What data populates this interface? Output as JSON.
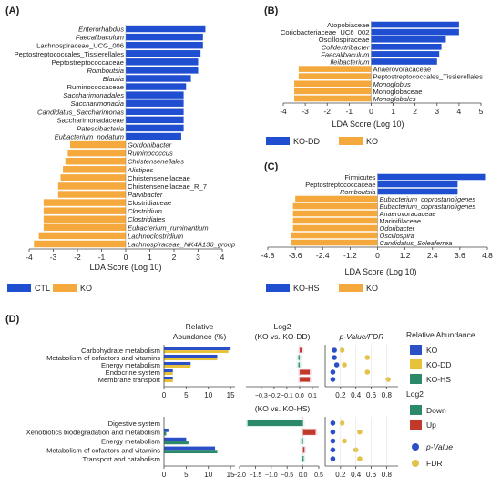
{
  "colors": {
    "ctl": "#1f4fd0",
    "ko": "#f5a93c",
    "ko_dd": "#1f4fd0",
    "ko_hs": "#1f4fd0",
    "relabund_ko": "#2a4fc7",
    "relabund_kodd": "#e7c13a",
    "relabund_kohs": "#2c8a6a",
    "log2_down": "#2c8a6a",
    "log2_up": "#c0392b",
    "pval": "#2a4fc7",
    "fdr": "#e2c24a"
  },
  "chart_data": [
    {
      "panel": "(A)",
      "type": "bar",
      "orientation": "horizontal",
      "xlabel": "LDA Score (Log 10)",
      "xlim": [
        -4,
        4
      ],
      "xticks": [
        "-4",
        "-3",
        "-2",
        "-1",
        "0",
        "1",
        "2",
        "3",
        "4"
      ],
      "legend": [
        {
          "name": "CTL",
          "color": "ctl"
        },
        {
          "name": "KO",
          "color": "ko"
        }
      ],
      "categories": [
        {
          "label": "Enterorhabdus",
          "italic": true,
          "value": 3.3,
          "group": "CTL"
        },
        {
          "label": "Faecalibaculum",
          "italic": true,
          "value": 3.2,
          "group": "CTL"
        },
        {
          "label": "Lachnospiraceae_UCG_006",
          "italic": false,
          "value": 3.2,
          "group": "CTL"
        },
        {
          "label": "Peptostreptococcales_Tissierellales",
          "italic": false,
          "value": 3.1,
          "group": "CTL"
        },
        {
          "label": "Peptostreptococcaceae",
          "italic": false,
          "value": 3.0,
          "group": "CTL"
        },
        {
          "label": "Romboutsia",
          "italic": true,
          "value": 3.0,
          "group": "CTL"
        },
        {
          "label": "Blautia",
          "italic": true,
          "value": 2.7,
          "group": "CTL"
        },
        {
          "label": "Ruminococcaceae",
          "italic": false,
          "value": 2.5,
          "group": "CTL"
        },
        {
          "label": "Saccharimonadales",
          "italic": true,
          "value": 2.4,
          "group": "CTL"
        },
        {
          "label": "Saccharimonadia",
          "italic": true,
          "value": 2.4,
          "group": "CTL"
        },
        {
          "label": "Candidatus_Saccharimonas",
          "italic": true,
          "value": 2.4,
          "group": "CTL"
        },
        {
          "label": "Saccharimonadaceae",
          "italic": false,
          "value": 2.4,
          "group": "CTL"
        },
        {
          "label": "Patescibacteria",
          "italic": true,
          "value": 2.4,
          "group": "CTL"
        },
        {
          "label": "Eubacterium_nodatum",
          "italic": true,
          "value": 2.3,
          "group": "CTL"
        },
        {
          "label": "Gordonibacter",
          "italic": true,
          "value": -2.3,
          "group": "KO"
        },
        {
          "label": "Ruminococcus",
          "italic": true,
          "value": -2.4,
          "group": "KO"
        },
        {
          "label": "Christensenellales",
          "italic": true,
          "value": -2.5,
          "group": "KO"
        },
        {
          "label": "Alistipes",
          "italic": true,
          "value": -2.6,
          "group": "KO"
        },
        {
          "label": "Christensenellaceae",
          "italic": false,
          "value": -2.7,
          "group": "KO"
        },
        {
          "label": "Christensenellaceae_R_7",
          "italic": false,
          "value": -2.8,
          "group": "KO"
        },
        {
          "label": "Parvibacter",
          "italic": true,
          "value": -2.8,
          "group": "KO"
        },
        {
          "label": "Clostridiaceae",
          "italic": false,
          "value": -3.4,
          "group": "KO"
        },
        {
          "label": "Clostridium",
          "italic": true,
          "value": -3.4,
          "group": "KO"
        },
        {
          "label": "Clostridiales",
          "italic": true,
          "value": -3.4,
          "group": "KO"
        },
        {
          "label": "Eubacterium_ruminantium",
          "italic": true,
          "value": -3.4,
          "group": "KO"
        },
        {
          "label": "Lachnoclostridium",
          "italic": true,
          "value": -3.6,
          "group": "KO"
        },
        {
          "label": "Lachnospiraceae_NK4A136_group",
          "italic": true,
          "value": -3.8,
          "group": "KO"
        }
      ]
    },
    {
      "panel": "(B)",
      "type": "bar",
      "orientation": "horizontal",
      "xlabel": "LDA Score (Log 10)",
      "xlim": [
        -4,
        5
      ],
      "xticks": [
        "-4",
        "-3",
        "-2",
        "-1",
        "0",
        "1",
        "2",
        "3",
        "4",
        "5"
      ],
      "legend": [
        {
          "name": "KO-DD",
          "color": "ko_dd"
        },
        {
          "name": "KO",
          "color": "ko"
        }
      ],
      "categories": [
        {
          "label": "Atopobiaceae",
          "italic": false,
          "value": 4.0,
          "group": "KO-DD"
        },
        {
          "label": "Coricbacteriaceae_UC6_002",
          "italic": false,
          "value": 4.0,
          "group": "KO-DD"
        },
        {
          "label": "Oscillospiraceae",
          "italic": false,
          "value": 3.4,
          "group": "KO-DD"
        },
        {
          "label": "Colidextribacter",
          "italic": true,
          "value": 3.2,
          "group": "KO-DD"
        },
        {
          "label": "Faecalibaculum",
          "italic": true,
          "value": 3.1,
          "group": "KO-DD"
        },
        {
          "label": "Ileibacterium",
          "italic": true,
          "value": 3.0,
          "group": "KO-DD"
        },
        {
          "label": "Anaerovoracaceae",
          "italic": false,
          "value": -3.3,
          "group": "KO"
        },
        {
          "label": "Peptostreptococcales_Tissierellales",
          "italic": false,
          "value": -3.3,
          "group": "KO"
        },
        {
          "label": "Monoglobus",
          "italic": true,
          "value": -3.5,
          "group": "KO"
        },
        {
          "label": "Monoglobaceae",
          "italic": false,
          "value": -3.5,
          "group": "KO"
        },
        {
          "label": "Monoglobales",
          "italic": true,
          "value": -3.5,
          "group": "KO"
        }
      ]
    },
    {
      "panel": "(C)",
      "type": "bar",
      "orientation": "horizontal",
      "xlabel": "LDA Score (Log 10)",
      "xlim": [
        -4.8,
        4.8
      ],
      "xticks": [
        "-4.8",
        "-3.6",
        "-2.4",
        "-1.2",
        "0",
        "1.2",
        "2.4",
        "3.6",
        "4.8"
      ],
      "legend": [
        {
          "name": "KO-HS",
          "color": "ko_hs"
        },
        {
          "name": "KO",
          "color": "ko"
        }
      ],
      "categories": [
        {
          "label": "Firmicutes",
          "italic": false,
          "value": 4.7,
          "group": "KO-HS"
        },
        {
          "label": "Peptostreptococcaceae",
          "italic": false,
          "value": 3.5,
          "group": "KO-HS"
        },
        {
          "label": "Romboutsia",
          "italic": true,
          "value": 3.5,
          "group": "KO-HS"
        },
        {
          "label": "Eubacterium_coprostanoligenes",
          "italic": true,
          "value": -3.6,
          "group": "KO"
        },
        {
          "label": "Eubacterium_coprastanoligenes",
          "italic": true,
          "value": -3.7,
          "group": "KO"
        },
        {
          "label": "Anaerovoracaceae",
          "italic": false,
          "value": -3.7,
          "group": "KO"
        },
        {
          "label": "Marinifilaceae",
          "italic": false,
          "value": -3.7,
          "group": "KO"
        },
        {
          "label": "Odoribacter",
          "italic": true,
          "value": -3.7,
          "group": "KO"
        },
        {
          "label": "Oscillospira",
          "italic": true,
          "value": -3.8,
          "group": "KO"
        },
        {
          "label": "Candidatus_Soleaferrea",
          "italic": true,
          "value": -3.8,
          "group": "KO"
        }
      ]
    },
    {
      "panel": "(D)",
      "type": "bar",
      "subplots": [
        {
          "categories": [
            "Carbohydrate metabolism",
            "Metabolism of cofactors and vitamins",
            "Energy metabolism",
            "Endocrine system",
            "Membrane transport"
          ],
          "relative_abundance": {
            "KO": [
              15.0,
              12.0,
              6.0,
              2.0,
              2.0
            ],
            "KO-DD": [
              14.5,
              12.0,
              6.0,
              2.0,
              2.0
            ]
          },
          "log2": [
            0.02,
            -0.01,
            -0.01,
            0.08,
            0.08
          ],
          "pvalue": [
            0.12,
            0.12,
            0.15,
            0.1,
            0.1
          ],
          "fdr": [
            0.22,
            0.55,
            0.25,
            0.55,
            0.82
          ],
          "log2_title": "Log2\n(KO vs. KO-DD)",
          "log2_xlim": [
            -0.42,
            0.15
          ],
          "log2_ticks": [
            "−0.3",
            "−0.2",
            "−0.1",
            "0.0",
            "0.1"
          ]
        },
        {
          "categories": [
            "Digestive system",
            "Xenobiotics biodegradation and metabolism",
            "Energy metabolism",
            "Metabolism of cofactors and vitamins",
            "Transport and catabolism"
          ],
          "relative_abundance": {
            "KO": [
              0.0,
              1.0,
              5.0,
              11.5,
              0.0
            ],
            "KO-HS": [
              0.0,
              0.5,
              5.5,
              12.0,
              0.0
            ]
          },
          "log2": [
            -1.75,
            0.4,
            -0.05,
            0.05,
            -0.02
          ],
          "pvalue": [
            0.1,
            0.1,
            0.1,
            0.1,
            0.1
          ],
          "fdr": [
            0.22,
            0.45,
            0.25,
            0.4,
            0.45
          ],
          "log2_title": "(KO vs. KO-HS)",
          "log2_xlim": [
            -2.0,
            0.5
          ],
          "log2_ticks": [
            "−2.0",
            "−1.5",
            "−1.0",
            "−0.5",
            "0.0",
            "0.5"
          ]
        }
      ],
      "relabund_title": "Relative\nAbundance (%)",
      "relabund_ticks": [
        "0",
        "5",
        "10",
        "15"
      ],
      "pval_title": "p-Value/FDR",
      "pval_ticks": [
        "0.2",
        "0.4",
        "0.6",
        "0.8"
      ],
      "legend": {
        "relabund_title": "Relative Abundance",
        "relabund_items": [
          "KO",
          "KO-DD",
          "KO-HS"
        ],
        "log2_title": "Log2",
        "log2_items": [
          "Down",
          "Up"
        ],
        "pval_items": [
          "p-Value",
          "FDR"
        ]
      }
    }
  ]
}
